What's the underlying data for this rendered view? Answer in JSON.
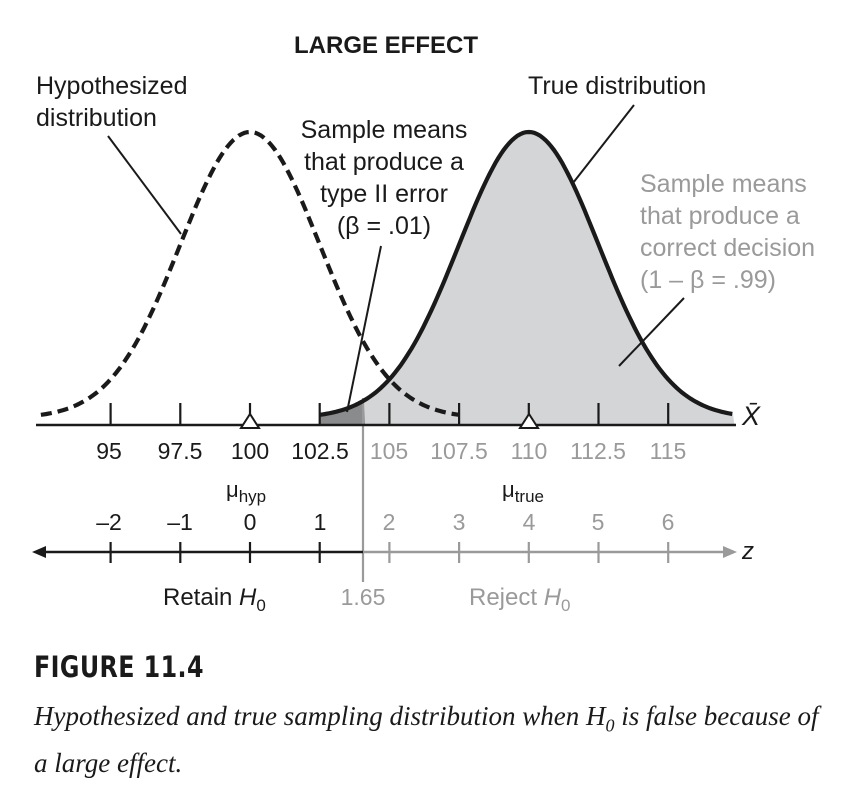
{
  "figure": {
    "title": "LARGE EFFECT",
    "hyp_label": [
      "Hypothesized",
      "distribution"
    ],
    "true_label": "True distribution",
    "type2_label": [
      "Sample means",
      "that produce a",
      "type II error",
      "(β = .01)"
    ],
    "correct_label": [
      "Sample means",
      "that produce a",
      "correct decision",
      "(1 – β = .99)"
    ],
    "xbar_label": "X̄",
    "z_label": "z",
    "mu_hyp": "μ",
    "mu_hyp_sub": "hyp",
    "mu_true": "μ",
    "mu_true_sub": "true",
    "critical_value": "1.65",
    "retain_text": "Retain ",
    "reject_text": "Reject ",
    "h": "H",
    "h_sub": "0",
    "x_ticks": [
      "95",
      "97.5",
      "100",
      "102.5",
      "105",
      "107.5",
      "110",
      "112.5",
      "115"
    ],
    "z_ticks": [
      "–2",
      "–1",
      "0",
      "1",
      "2",
      "3",
      "4",
      "5",
      "6"
    ]
  },
  "chart_data": {
    "type": "area",
    "title": "LARGE EFFECT",
    "series": [
      {
        "name": "Hypothesized distribution",
        "mean": 100,
        "style": "dashed"
      },
      {
        "name": "True distribution",
        "mean": 110,
        "style": "solid-shaded"
      }
    ],
    "x_ticks": [
      95,
      97.5,
      100,
      102.5,
      105,
      107.5,
      110,
      112.5,
      115
    ],
    "z_ticks": [
      -2,
      -1,
      0,
      1,
      2,
      3,
      4,
      5,
      6
    ],
    "critical_z": 1.65,
    "beta": 0.01,
    "power": 0.99,
    "colors": {
      "ink": "#1a1a1a",
      "gray_text": "#9a9a9a",
      "shade": "#d4d5d7",
      "dark_shade": "#8a8b8d"
    }
  },
  "caption": {
    "label": "FIGURE 11.4",
    "text_before": "Hypothesized and true sampling distribution when ",
    "h": "H",
    "h_sub": "0",
    "text_after": " is false because of a large effect."
  }
}
